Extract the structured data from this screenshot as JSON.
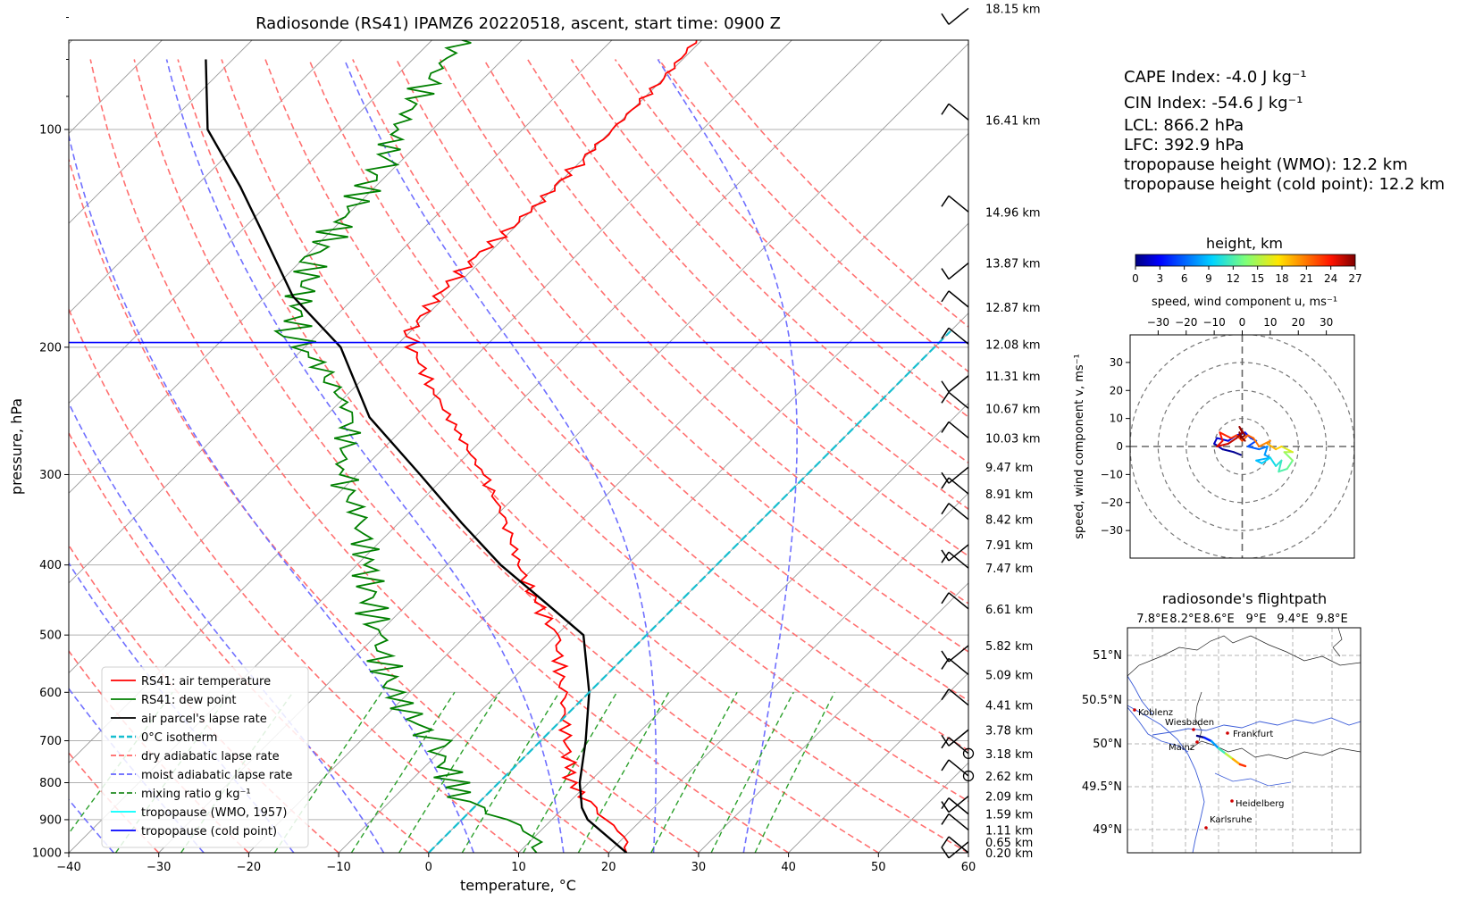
{
  "skewt": {
    "title": "Radiosonde (RS41) IPAMZ6 20220518, ascent, start time: 0900 Z",
    "xlabel": "temperature, °C",
    "ylabel": "pressure, hPa",
    "x_ticks": [
      -40,
      -30,
      -20,
      -10,
      0,
      10,
      20,
      30,
      40,
      50,
      60
    ],
    "y_ticks": [
      100,
      200,
      300,
      400,
      500,
      600,
      700,
      800,
      900,
      1000
    ],
    "height_labels": [
      {
        "p": 68,
        "label": "18.15 km"
      },
      {
        "p": 97,
        "label": "16.41 km"
      },
      {
        "p": 130,
        "label": "14.96 km"
      },
      {
        "p": 153,
        "label": "13.87 km"
      },
      {
        "p": 176,
        "label": "12.87 km"
      },
      {
        "p": 198,
        "label": "12.08 km"
      },
      {
        "p": 219,
        "label": "11.31 km"
      },
      {
        "p": 243,
        "label": "10.67 km"
      },
      {
        "p": 267,
        "label": "10.03 km"
      },
      {
        "p": 293,
        "label": "9.47 km"
      },
      {
        "p": 319,
        "label": "8.91 km"
      },
      {
        "p": 346,
        "label": "8.42 km"
      },
      {
        "p": 375,
        "label": "7.91 km"
      },
      {
        "p": 404,
        "label": "7.47 km"
      },
      {
        "p": 460,
        "label": "6.61 km"
      },
      {
        "p": 517,
        "label": "5.82 km"
      },
      {
        "p": 567,
        "label": "5.09 km"
      },
      {
        "p": 625,
        "label": "4.41 km"
      },
      {
        "p": 676,
        "label": "3.78 km"
      },
      {
        "p": 729,
        "label": "3.18 km"
      },
      {
        "p": 783,
        "label": "2.62 km"
      },
      {
        "p": 835,
        "label": "2.09 km"
      },
      {
        "p": 884,
        "label": "1.59 km"
      },
      {
        "p": 930,
        "label": "1.11 km"
      },
      {
        "p": 966,
        "label": "0.65 km"
      },
      {
        "p": 1000,
        "label": "0.20 km"
      }
    ],
    "legend": [
      {
        "label": "RS41: air temperature",
        "color": "#ff0000",
        "style": "solid"
      },
      {
        "label": "RS41: dew point",
        "color": "#008000",
        "style": "solid"
      },
      {
        "label": "air parcel's lapse rate",
        "color": "#000000",
        "style": "solid"
      },
      {
        "label": "0°C isotherm",
        "color": "#17becf",
        "style": "dashed"
      },
      {
        "label": "dry adiabatic lapse rate",
        "color": "#ff6666",
        "style": "dashed"
      },
      {
        "label": "moist adiabatic lapse rate",
        "color": "#6666ff",
        "style": "dashed"
      },
      {
        "label": "mixing ratio g kg⁻¹",
        "color": "#228b22",
        "style": "dashed"
      },
      {
        "label": "tropopause (WMO, 1957)",
        "color": "#00ffff",
        "style": "solid"
      },
      {
        "label": "tropopause (cold point)",
        "color": "#0000ff",
        "style": "solid"
      }
    ]
  },
  "indices": {
    "cape": "CAPE Index: -4.0 J kg⁻¹",
    "cin": "CIN Index: -54.6 J kg⁻¹",
    "lcl": "LCL: 866.2 hPa",
    "lfc": "LFC: 392.9 hPa",
    "tropo_wmo": "tropopause height (WMO): 12.2 km",
    "tropo_cold": "tropopause height (cold point): 12.2 km"
  },
  "colorbar": {
    "title": "height, km",
    "ticks": [
      "0",
      "3",
      "6",
      "9",
      "12",
      "15",
      "18",
      "21",
      "24",
      "27"
    ]
  },
  "hodograph": {
    "top_label": "speed, wind component u, ms⁻¹",
    "left_label": "speed, wind component v, ms⁻¹",
    "x_ticks": [
      "−30",
      "−20",
      "−10",
      "0",
      "10",
      "20",
      "30"
    ],
    "y_ticks": [
      "30",
      "20",
      "10",
      "0",
      "−10",
      "−20",
      "−30"
    ]
  },
  "map": {
    "title": "radiosonde's flightpath",
    "lon_ticks": [
      "7.8°E",
      "8.2°E",
      "8.6°E",
      "9°E",
      "9.4°E",
      "9.8°E"
    ],
    "lat_ticks": [
      "51°N",
      "50.5°N",
      "50°N",
      "49.5°N",
      "49°N"
    ],
    "cities": [
      "Koblenz",
      "Wiesbaden",
      "Frankfurt",
      "Mainz",
      "Heidelberg",
      "Karlsruhe"
    ]
  },
  "chart_data": [
    {
      "type": "line",
      "title": "Radiosonde (RS41) IPAMZ6 20220518, ascent, start time: 0900 Z",
      "xlabel": "temperature, °C",
      "ylabel": "pressure, hPa",
      "xlim": [
        -40,
        60
      ],
      "ylim": [
        1000,
        70
      ],
      "yscale": "log",
      "grid": true,
      "legend_position": "lower-left",
      "series": [
        {
          "name": "RS41: air temperature",
          "color": "#ff0000",
          "x": [
            22,
            20,
            16,
            12,
            8,
            5.5,
            -3,
            -10,
            -16,
            -22,
            -28,
            -36,
            -44,
            -52,
            -58,
            -60,
            -61,
            -61,
            -60,
            -60,
            -60,
            -60,
            -61
          ],
          "y": [
            1000,
            950,
            900,
            850,
            800,
            750,
            600,
            500,
            450,
            400,
            350,
            300,
            260,
            225,
            200,
            190,
            170,
            150,
            130,
            110,
            100,
            85,
            70
          ]
        },
        {
          "name": "RS41: dew point",
          "color": "#008000",
          "x": [
            12,
            10,
            5,
            -2,
            -5,
            -12,
            -22,
            -30,
            -39,
            -44,
            -52,
            -57,
            -64,
            -70,
            -73,
            -76,
            -79,
            -80,
            -82,
            -84,
            -86,
            -87
          ],
          "y": [
            1000,
            950,
            900,
            850,
            800,
            700,
            600,
            500,
            400,
            350,
            300,
            250,
            220,
            200,
            190,
            170,
            150,
            130,
            110,
            100,
            85,
            70
          ]
        },
        {
          "name": "air parcel's lapse rate",
          "color": "#000000",
          "x": [
            22,
            14,
            12,
            9,
            5,
            0,
            -7,
            -15,
            -24,
            -33,
            -43,
            -55,
            -66,
            -77,
            -87,
            -95,
            -105,
            -113
          ],
          "y": [
            1000,
            900,
            866,
            800,
            700,
            600,
            500,
            450,
            400,
            350,
            300,
            250,
            200,
            170,
            140,
            120,
            100,
            80
          ]
        },
        {
          "name": "0°C isotherm",
          "color": "#17becf",
          "x": [
            0,
            0
          ],
          "y": [
            1000,
            190
          ]
        },
        {
          "name": "tropopause (cold point)",
          "color": "#0000ff",
          "x": [
            -40,
            60
          ],
          "y": [
            197,
            197
          ]
        }
      ]
    },
    {
      "type": "line",
      "title": "",
      "xlabel": "speed, wind component u, ms⁻¹",
      "ylabel": "speed, wind component v, ms⁻¹",
      "xlim": [
        -40,
        40
      ],
      "ylim": [
        -40,
        40
      ],
      "rings": [
        10,
        20,
        30,
        40
      ],
      "series": [
        {
          "name": "",
          "u": [
            -0.5,
            -3,
            -7,
            -10,
            -9,
            -5,
            -2,
            1,
            3,
            5,
            2,
            6,
            9,
            8,
            10,
            5,
            7,
            10,
            12,
            14,
            13,
            16,
            18,
            15,
            18,
            14,
            12,
            9,
            10,
            6,
            4,
            2,
            0,
            -2,
            -4,
            -8,
            -7,
            -9,
            -5,
            -2,
            0,
            -1,
            1,
            -0.5,
            -1,
            0,
            1
          ],
          "v": [
            -3,
            -2,
            -1,
            1,
            3,
            2,
            4,
            5,
            3,
            2,
            0,
            -1,
            0,
            -3,
            -4,
            -5,
            -6,
            -4,
            -7,
            -5,
            -9,
            -8,
            -5,
            -2,
            -2,
            0,
            -1,
            1,
            2,
            0,
            3,
            4,
            2,
            4,
            3,
            5,
            2,
            0,
            1,
            3,
            5,
            7,
            4,
            3,
            5,
            3,
            2
          ],
          "height_km": [
            0.2,
            0.65,
            1.11,
            1.59,
            2.09,
            2.62,
            3.18,
            3.78,
            4.41,
            5.09,
            5.82,
            6.61,
            7.47,
            7.91,
            8.42,
            8.91,
            9.47,
            10.03,
            10.67,
            11.31,
            12.08,
            12.87,
            13.87,
            14.96,
            16.41,
            18.15,
            19,
            20,
            20.5,
            21,
            21.5,
            22,
            22.5,
            23,
            23.5,
            24,
            24.5,
            25,
            25.5,
            26,
            26.3,
            26.5,
            26.7,
            26.8,
            26.9,
            27,
            27
          ]
        }
      ]
    }
  ]
}
